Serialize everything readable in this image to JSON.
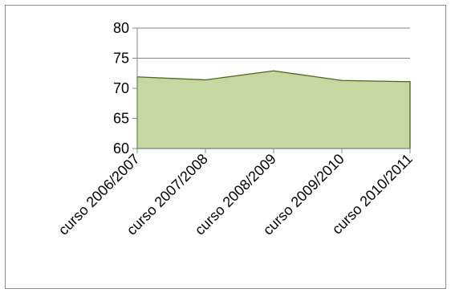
{
  "chart_data": {
    "type": "area",
    "title": "",
    "xlabel": "",
    "ylabel": "",
    "categories": [
      "curso 2006/2007",
      "curso 2007/2008",
      "curso 2008/2009",
      "curso 2009/2010",
      "curso 2010/2011"
    ],
    "series": [
      {
        "values": [
          71.9,
          71.4,
          72.9,
          71.3,
          71.1
        ]
      }
    ],
    "ylim": [
      60,
      80
    ],
    "yticks": [
      "60",
      "65",
      "70",
      "75",
      "80"
    ],
    "grid": true,
    "legend": "none",
    "colors": {
      "fill": "#c4d89f",
      "line": "#4f6228",
      "grid": "#878787",
      "axis": "#878787"
    }
  }
}
